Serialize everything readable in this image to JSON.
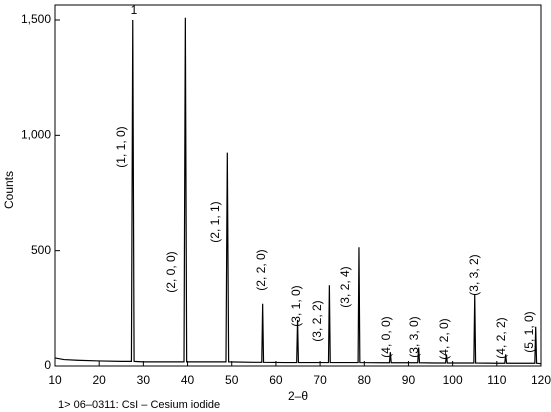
{
  "chart_data": {
    "type": "line",
    "x": [
      10,
      12,
      15,
      20,
      25,
      27.3,
      27.6,
      27.9,
      30,
      35,
      39.2,
      39.5,
      39.8,
      45,
      48.7,
      49.0,
      49.3,
      55,
      56.8,
      57.0,
      57.2,
      62,
      64.7,
      64.9,
      65.1,
      70,
      71.9,
      72.1,
      72.3,
      76,
      78.6,
      78.8,
      79.0,
      84,
      85.7,
      85.9,
      86.1,
      90,
      92.1,
      92.3,
      92.5,
      96,
      98.4,
      98.6,
      98.8,
      103,
      104.8,
      105.0,
      105.2,
      110,
      111.8,
      112.0,
      112.2,
      116,
      118.6,
      118.8,
      119.0,
      120
    ],
    "values": [
      35,
      28,
      25,
      22,
      20,
      20,
      1500,
      20,
      18,
      18,
      18,
      1510,
      18,
      18,
      18,
      925,
      18,
      16,
      16,
      270,
      16,
      15,
      15,
      200,
      15,
      15,
      15,
      350,
      15,
      15,
      15,
      515,
      15,
      14,
      14,
      60,
      14,
      14,
      14,
      80,
      14,
      13,
      13,
      50,
      13,
      13,
      13,
      310,
      13,
      12,
      12,
      50,
      12,
      12,
      12,
      170,
      12,
      10
    ],
    "color": "#000000",
    "xlim": [
      10,
      120
    ],
    "xticks": [
      10,
      20,
      30,
      40,
      50,
      60,
      70,
      80,
      90,
      100,
      110,
      120
    ],
    "ylim": [
      0,
      1565
    ],
    "yticks": [
      0,
      500,
      {
        "value": 1000,
        "label": "1,000"
      },
      {
        "value": 1500,
        "label": "1,500"
      }
    ],
    "xlabel": "2–θ",
    "ylabel": "Counts",
    "peak_marker": "1",
    "annotations": [
      "(1, 1, 0)",
      "(2, 0, 0)",
      "(2, 1, 1)",
      "(2, 2, 0)",
      "(3, 1, 0)",
      "(3, 2, 2)",
      "(3, 2, 4)",
      "(4, 0, 0)",
      "(3, 3, 0)",
      "(4, 2, 0)",
      "(3, 3, 2)",
      "(4, 2, 2)",
      "(5, 1, 0)"
    ],
    "footnote": "1> 06–0311: CsI – Cesium iodide"
  }
}
